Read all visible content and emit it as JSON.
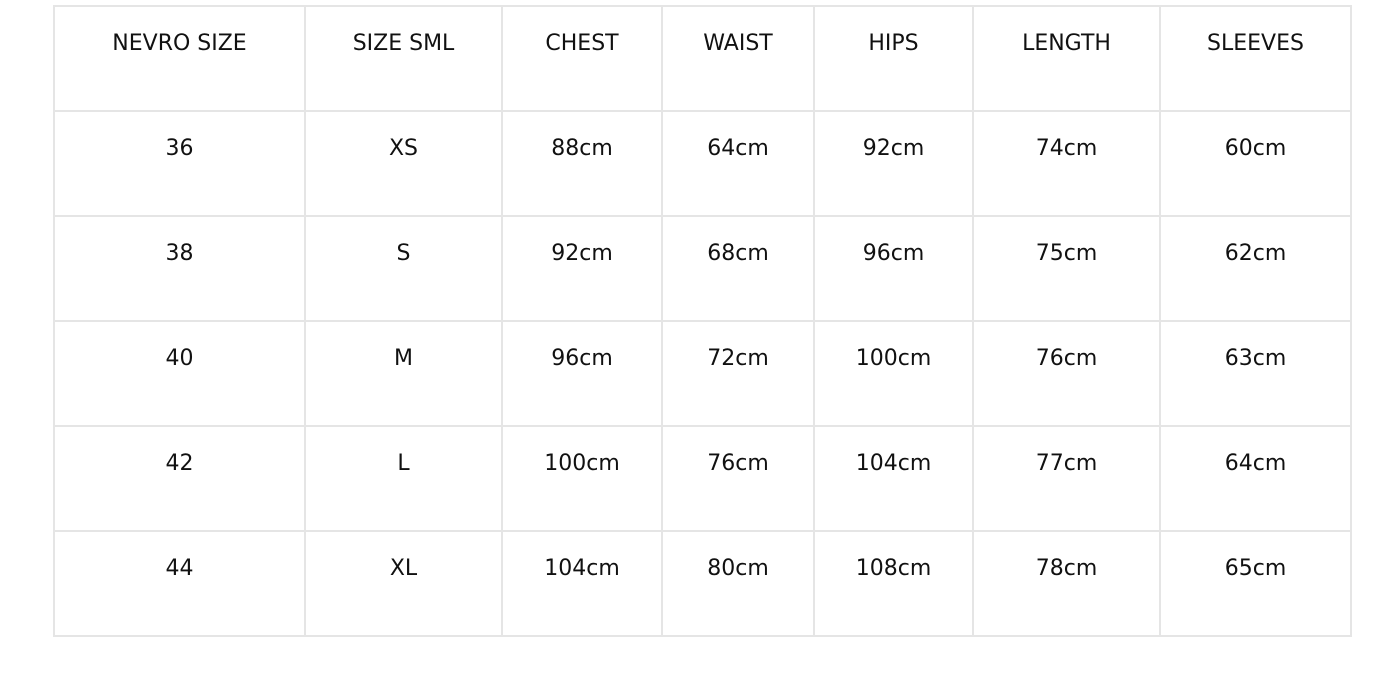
{
  "size_chart": {
    "headers": [
      "NEVRO SIZE",
      "SIZE SML",
      "CHEST",
      "WAIST",
      "HIPS",
      "LENGTH",
      "SLEEVES"
    ],
    "rows": [
      [
        "36",
        "XS",
        "88cm",
        "64cm",
        "92cm",
        "74cm",
        "60cm"
      ],
      [
        "38",
        "S",
        "92cm",
        "68cm",
        "96cm",
        "75cm",
        "62cm"
      ],
      [
        "40",
        "M",
        "96cm",
        "72cm",
        "100cm",
        "76cm",
        "63cm"
      ],
      [
        "42",
        "L",
        "100cm",
        "76cm",
        "104cm",
        "77cm",
        "64cm"
      ],
      [
        "44",
        "XL",
        "104cm",
        "80cm",
        "108cm",
        "78cm",
        "65cm"
      ]
    ]
  }
}
